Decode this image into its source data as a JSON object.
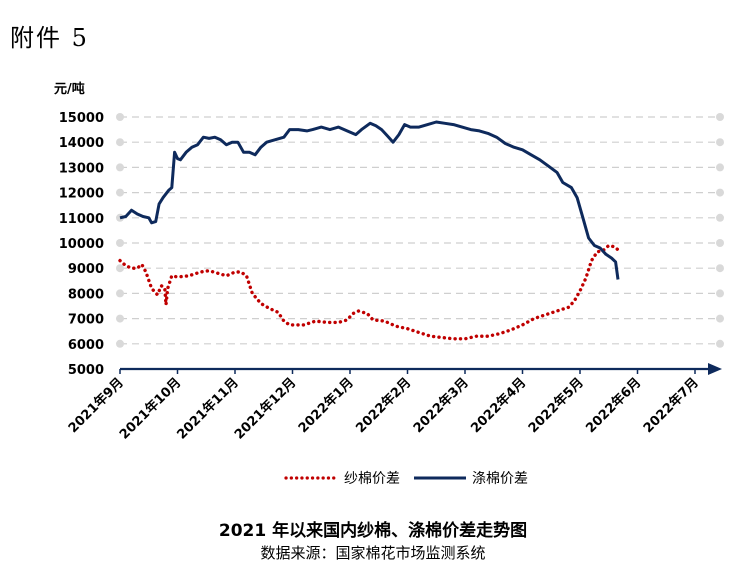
{
  "header": {
    "attachment_label": "附件 5"
  },
  "chart_data": {
    "type": "line",
    "title": "2021 年以来国内纱棉、涤棉价差走势图",
    "source": "数据来源：国家棉花市场监测系统",
    "unit_label": "元/吨",
    "ylim": [
      5000,
      15000
    ],
    "y_ticks": [
      5000,
      6000,
      7000,
      8000,
      9000,
      10000,
      11000,
      12000,
      13000,
      14000,
      15000
    ],
    "x_tick_labels": [
      "2021年9月",
      "2021年10月",
      "2021年11月",
      "2021年12月",
      "2022年1月",
      "2022年2月",
      "2022年3月",
      "2022年4月",
      "2022年5月",
      "2022年6月",
      "2022年7月"
    ],
    "grid": true,
    "legend_position": "bottom",
    "series": [
      {
        "name": "纱棉价差",
        "style": "dotted",
        "color": "#c00000",
        "points": [
          [
            0,
            9300
          ],
          [
            0.1,
            9100
          ],
          [
            0.2,
            9000
          ],
          [
            0.3,
            9000
          ],
          [
            0.38,
            9150
          ],
          [
            0.45,
            8850
          ],
          [
            0.55,
            8200
          ],
          [
            0.65,
            7950
          ],
          [
            0.72,
            8300
          ],
          [
            0.78,
            8200
          ],
          [
            0.8,
            7550
          ],
          [
            0.83,
            8200
          ],
          [
            0.9,
            8700
          ],
          [
            1.0,
            8650
          ],
          [
            1.2,
            8700
          ],
          [
            1.4,
            8850
          ],
          [
            1.55,
            8900
          ],
          [
            1.7,
            8800
          ],
          [
            1.85,
            8700
          ],
          [
            2.0,
            8850
          ],
          [
            2.1,
            8850
          ],
          [
            2.2,
            8700
          ],
          [
            2.3,
            8000
          ],
          [
            2.45,
            7600
          ],
          [
            2.6,
            7400
          ],
          [
            2.75,
            7250
          ],
          [
            2.85,
            6900
          ],
          [
            2.95,
            6750
          ],
          [
            3.2,
            6750
          ],
          [
            3.4,
            6900
          ],
          [
            3.6,
            6850
          ],
          [
            3.8,
            6850
          ],
          [
            3.95,
            6950
          ],
          [
            4.05,
            7200
          ],
          [
            4.15,
            7300
          ],
          [
            4.3,
            7200
          ],
          [
            4.4,
            6950
          ],
          [
            4.6,
            6900
          ],
          [
            4.8,
            6700
          ],
          [
            5.0,
            6600
          ],
          [
            5.2,
            6450
          ],
          [
            5.4,
            6300
          ],
          [
            5.6,
            6250
          ],
          [
            5.8,
            6200
          ],
          [
            6.0,
            6200
          ],
          [
            6.2,
            6300
          ],
          [
            6.4,
            6300
          ],
          [
            6.6,
            6400
          ],
          [
            6.8,
            6550
          ],
          [
            7.0,
            6750
          ],
          [
            7.2,
            7000
          ],
          [
            7.4,
            7150
          ],
          [
            7.6,
            7300
          ],
          [
            7.8,
            7450
          ],
          [
            7.9,
            7700
          ],
          [
            8.0,
            8100
          ],
          [
            8.1,
            8600
          ],
          [
            8.2,
            9300
          ],
          [
            8.3,
            9650
          ],
          [
            8.4,
            9700
          ],
          [
            8.5,
            9900
          ],
          [
            8.6,
            9850
          ],
          [
            8.65,
            9750
          ]
        ]
      },
      {
        "name": "涤棉价差",
        "style": "solid",
        "color": "#0e2a5c",
        "points": [
          [
            0,
            11000
          ],
          [
            0.1,
            11050
          ],
          [
            0.2,
            11300
          ],
          [
            0.3,
            11150
          ],
          [
            0.4,
            11050
          ],
          [
            0.5,
            11000
          ],
          [
            0.55,
            10800
          ],
          [
            0.62,
            10850
          ],
          [
            0.68,
            11550
          ],
          [
            0.75,
            11800
          ],
          [
            0.85,
            12100
          ],
          [
            0.9,
            12200
          ],
          [
            0.95,
            13600
          ],
          [
            1.0,
            13350
          ],
          [
            1.05,
            13300
          ],
          [
            1.15,
            13600
          ],
          [
            1.25,
            13800
          ],
          [
            1.35,
            13900
          ],
          [
            1.45,
            14200
          ],
          [
            1.55,
            14150
          ],
          [
            1.65,
            14200
          ],
          [
            1.75,
            14100
          ],
          [
            1.85,
            13900
          ],
          [
            1.95,
            14000
          ],
          [
            2.05,
            14000
          ],
          [
            2.15,
            13600
          ],
          [
            2.25,
            13600
          ],
          [
            2.35,
            13500
          ],
          [
            2.45,
            13800
          ],
          [
            2.55,
            14000
          ],
          [
            2.7,
            14100
          ],
          [
            2.85,
            14200
          ],
          [
            2.95,
            14500
          ],
          [
            3.1,
            14500
          ],
          [
            3.25,
            14450
          ],
          [
            3.35,
            14500
          ],
          [
            3.5,
            14600
          ],
          [
            3.65,
            14500
          ],
          [
            3.8,
            14600
          ],
          [
            3.95,
            14450
          ],
          [
            4.1,
            14300
          ],
          [
            4.2,
            14500
          ],
          [
            4.35,
            14750
          ],
          [
            4.45,
            14650
          ],
          [
            4.55,
            14500
          ],
          [
            4.65,
            14250
          ],
          [
            4.75,
            14000
          ],
          [
            4.85,
            14300
          ],
          [
            4.95,
            14700
          ],
          [
            5.05,
            14600
          ],
          [
            5.2,
            14600
          ],
          [
            5.35,
            14700
          ],
          [
            5.5,
            14800
          ],
          [
            5.65,
            14750
          ],
          [
            5.8,
            14700
          ],
          [
            5.95,
            14600
          ],
          [
            6.1,
            14500
          ],
          [
            6.25,
            14450
          ],
          [
            6.4,
            14350
          ],
          [
            6.55,
            14200
          ],
          [
            6.7,
            13950
          ],
          [
            6.85,
            13800
          ],
          [
            7.0,
            13700
          ],
          [
            7.15,
            13500
          ],
          [
            7.3,
            13300
          ],
          [
            7.45,
            13050
          ],
          [
            7.6,
            12800
          ],
          [
            7.7,
            12400
          ],
          [
            7.85,
            12200
          ],
          [
            7.95,
            11800
          ],
          [
            8.05,
            11000
          ],
          [
            8.15,
            10200
          ],
          [
            8.25,
            9900
          ],
          [
            8.35,
            9800
          ],
          [
            8.45,
            9550
          ],
          [
            8.55,
            9400
          ],
          [
            8.62,
            9250
          ],
          [
            8.66,
            8550
          ]
        ]
      }
    ]
  }
}
